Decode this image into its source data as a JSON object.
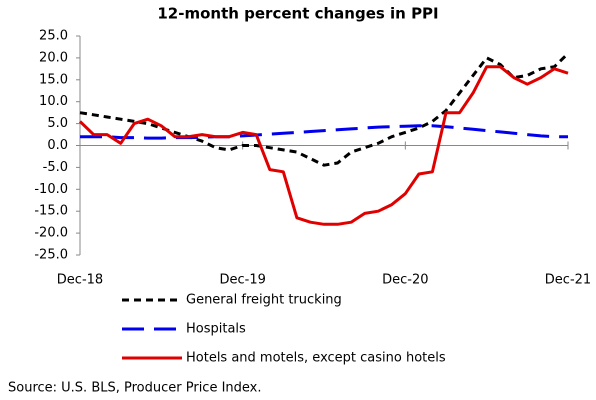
{
  "chart_data": {
    "type": "line",
    "title": "12-month percent changes in PPI",
    "source": "Source: U.S. BLS, Producer Price Index.",
    "categories": [
      "Dec-18",
      null,
      null,
      null,
      null,
      null,
      null,
      null,
      null,
      null,
      null,
      null,
      "Dec-19",
      null,
      null,
      null,
      null,
      null,
      null,
      null,
      null,
      null,
      null,
      null,
      "Dec-20",
      null,
      null,
      null,
      null,
      null,
      null,
      null,
      null,
      null,
      null,
      null,
      "Dec-21"
    ],
    "ylim": [
      -25,
      25
    ],
    "yticks": [
      {
        "value": 25,
        "label": "25.0"
      },
      {
        "value": 20,
        "label": "20.0"
      },
      {
        "value": 15,
        "label": "15.0"
      },
      {
        "value": 10,
        "label": "10.0"
      },
      {
        "value": 5,
        "label": "5.0"
      },
      {
        "value": 0,
        "label": "0.0"
      },
      {
        "value": -5,
        "label": "-5.0"
      },
      {
        "value": -10,
        "label": "-10.0"
      },
      {
        "value": -15,
        "label": "-15.0"
      },
      {
        "value": -20,
        "label": "-20.0"
      },
      {
        "value": -25,
        "label": "-25.0"
      }
    ],
    "grid": false,
    "legend": "bottom",
    "series": [
      {
        "name": "General freight trucking",
        "color": "#000000",
        "style": "dashed",
        "values": [
          7.5,
          7,
          6.5,
          6,
          5.5,
          5,
          4,
          3,
          2,
          1,
          -0.5,
          -1,
          0,
          0,
          -0.5,
          -1,
          -1.5,
          -3,
          -4.5,
          -4,
          -1.5,
          -0.5,
          0.5,
          2,
          3,
          4,
          5.5,
          8,
          12,
          16,
          20,
          18.5,
          15.5,
          16,
          17.5,
          18,
          21
        ]
      },
      {
        "name": "Hospitals",
        "color": "#0000ee",
        "style": "longdash",
        "values": [
          2,
          2,
          2,
          1.8,
          1.8,
          1.7,
          1.7,
          1.8,
          1.8,
          1.9,
          2,
          2,
          2.2,
          2.4,
          2.6,
          2.8,
          3,
          3.2,
          3.4,
          3.6,
          3.8,
          4,
          4.2,
          4.3,
          4.4,
          4.5,
          4.5,
          4.3,
          4,
          3.7,
          3.4,
          3.1,
          2.8,
          2.5,
          2.2,
          2,
          2
        ]
      },
      {
        "name": "Hotels and motels, except casino hotels",
        "color": "#e00000",
        "style": "solid",
        "values": [
          5.5,
          2.5,
          2.5,
          0.5,
          5,
          6,
          4.5,
          2,
          2,
          2.5,
          2,
          2,
          3,
          2.5,
          -5.5,
          -6,
          -16.5,
          -17.5,
          -18,
          -18,
          -17.5,
          -15.5,
          -15,
          -13.5,
          -11,
          -6.5,
          -6,
          7.5,
          7.5,
          12,
          18,
          18,
          15.5,
          14,
          15.5,
          17.5,
          16.5
        ]
      }
    ]
  }
}
